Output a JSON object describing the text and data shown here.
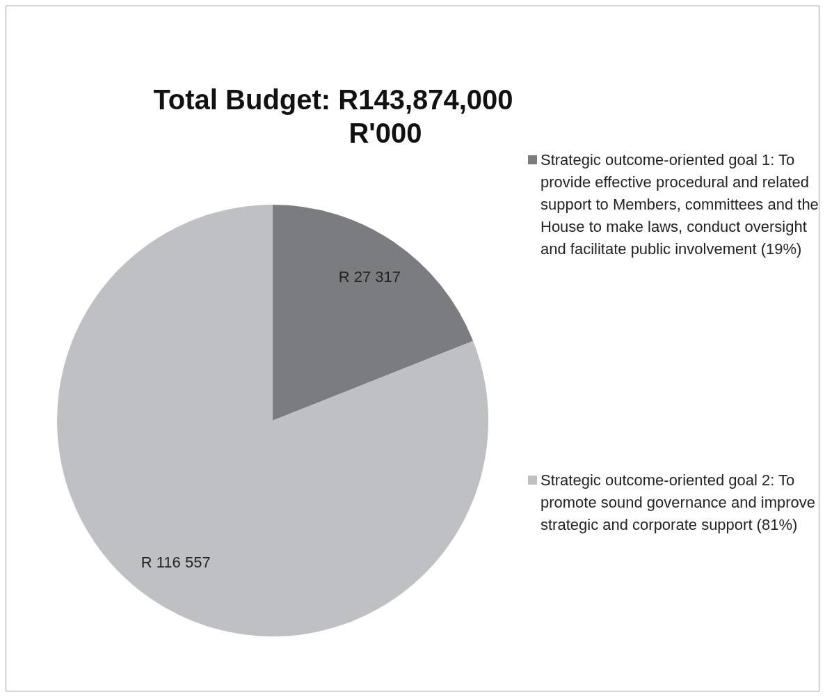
{
  "chart_data": {
    "type": "pie",
    "title": "Total Budget: R143,874,000",
    "subtitle": "R'000",
    "categories": [
      "Strategic outcome-oriented goal 1: To provide effective procedural and related support to Members, committees and the House to make laws, conduct oversight and facilitate public involvement (19%)",
      "Strategic outcome-oriented goal 2: To promote sound governance and improve strategic and corporate support (81%)"
    ],
    "values": [
      27317,
      116557
    ],
    "value_labels": [
      "R 27 317",
      "R 116 557"
    ],
    "colors": [
      "#7b7c80",
      "#bfc0c4"
    ],
    "legend": "right"
  }
}
